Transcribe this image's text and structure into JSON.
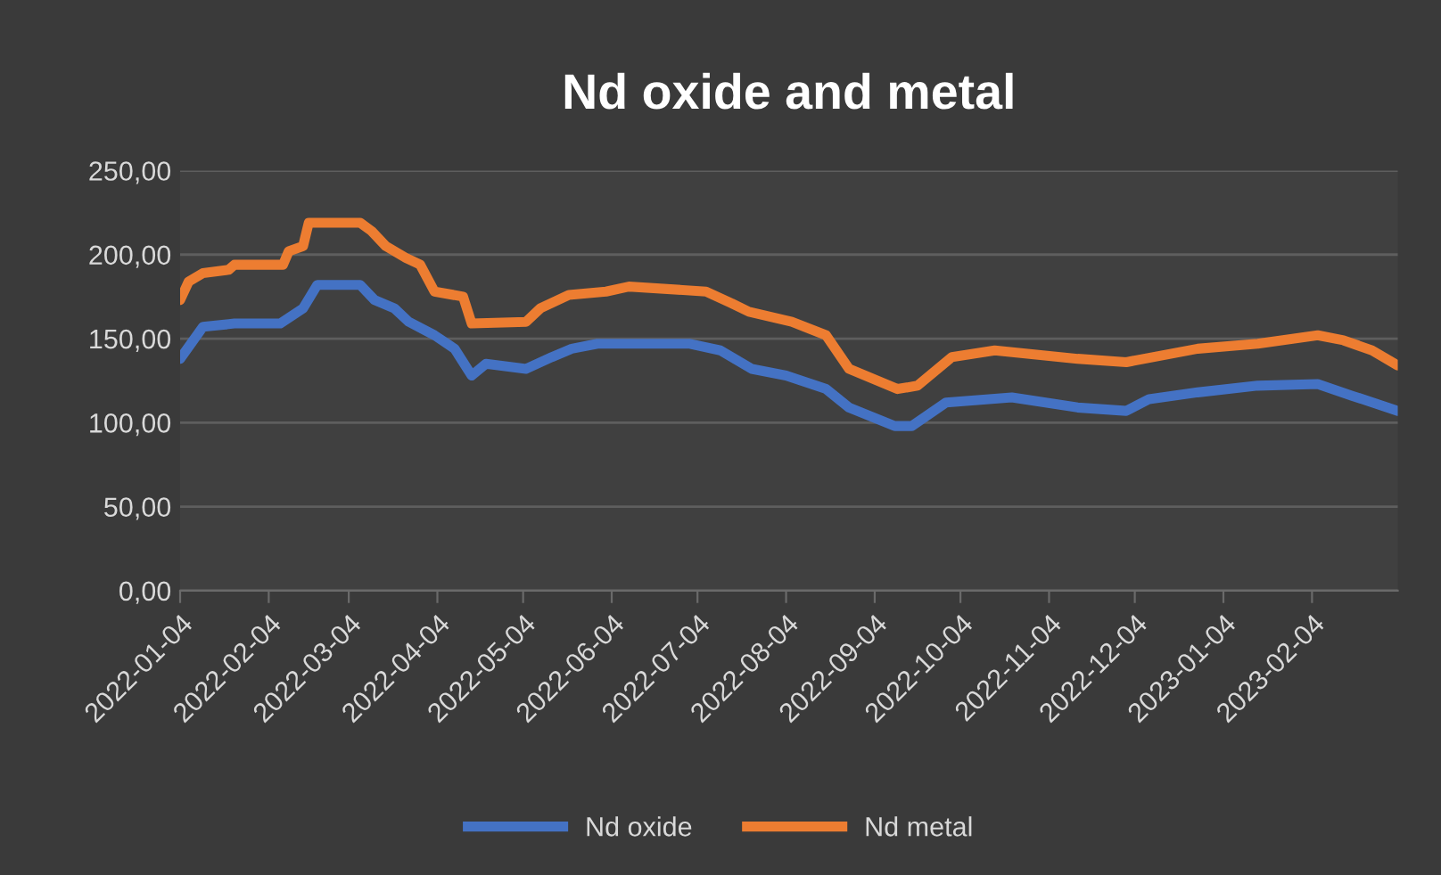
{
  "chart_data": {
    "type": "line",
    "title": "Nd oxide and metal",
    "ylim": [
      0,
      250
    ],
    "yticks": [
      {
        "value": 0,
        "label": "0,00"
      },
      {
        "value": 50,
        "label": "50,00"
      },
      {
        "value": 100,
        "label": "100,00"
      },
      {
        "value": 150,
        "label": "150,00"
      },
      {
        "value": 200,
        "label": "200,00"
      },
      {
        "value": 250,
        "label": "250,00"
      }
    ],
    "xlim": [
      "2022-01-04",
      "2023-03-06"
    ],
    "xticks": [
      "2022-01-04",
      "2022-02-04",
      "2022-03-04",
      "2022-04-04",
      "2022-05-04",
      "2022-06-04",
      "2022-07-04",
      "2022-08-04",
      "2022-09-04",
      "2022-10-04",
      "2022-11-04",
      "2022-12-04",
      "2023-01-04",
      "2023-02-04"
    ],
    "grid": "y",
    "legend": "bottom",
    "marker": "none",
    "line_style": "solid",
    "series": [
      {
        "name": "Nd oxide",
        "color": "#4472c4",
        "x": [
          "2022-01-04",
          "2022-01-12",
          "2022-01-23",
          "2022-02-08",
          "2022-02-16",
          "2022-02-21",
          "2022-03-08",
          "2022-03-13",
          "2022-03-20",
          "2022-03-25",
          "2022-04-03",
          "2022-04-10",
          "2022-04-16",
          "2022-04-21",
          "2022-05-05",
          "2022-05-14",
          "2022-05-21",
          "2022-05-30",
          "2022-07-01",
          "2022-07-12",
          "2022-07-23",
          "2022-08-04",
          "2022-08-18",
          "2022-08-26",
          "2022-09-11",
          "2022-09-17",
          "2022-09-29",
          "2022-10-22",
          "2022-11-14",
          "2022-12-01",
          "2022-12-09",
          "2022-12-26",
          "2023-01-16",
          "2023-02-06",
          "2023-02-18",
          "2023-03-06"
        ],
        "values": [
          138,
          157,
          159,
          159,
          168,
          182,
          182,
          173,
          168,
          160,
          152,
          144,
          128,
          135,
          132,
          139,
          144,
          147,
          147,
          143,
          132,
          128,
          120,
          109,
          98,
          98,
          112,
          115,
          109,
          107,
          114,
          118,
          122,
          123,
          116,
          107
        ]
      },
      {
        "name": "Nd metal",
        "color": "#ed7d31",
        "x": [
          "2022-01-04",
          "2022-01-07",
          "2022-01-12",
          "2022-01-21",
          "2022-01-23",
          "2022-02-09",
          "2022-02-11",
          "2022-02-16",
          "2022-02-18",
          "2022-03-08",
          "2022-03-12",
          "2022-03-17",
          "2022-03-24",
          "2022-03-29",
          "2022-04-03",
          "2022-04-13",
          "2022-04-16",
          "2022-05-05",
          "2022-05-10",
          "2022-05-20",
          "2022-06-02",
          "2022-06-10",
          "2022-07-07",
          "2022-07-16",
          "2022-07-22",
          "2022-08-06",
          "2022-08-18",
          "2022-08-26",
          "2022-09-12",
          "2022-09-19",
          "2022-10-01",
          "2022-10-16",
          "2022-11-14",
          "2022-12-01",
          "2022-12-26",
          "2023-01-16",
          "2023-02-06",
          "2023-02-15",
          "2023-02-25",
          "2023-03-06"
        ],
        "values": [
          173,
          184,
          189,
          191,
          194,
          194,
          202,
          205,
          219,
          219,
          214,
          205,
          198,
          194,
          178,
          175,
          159,
          160,
          168,
          176,
          178,
          181,
          178,
          171,
          166,
          160,
          152,
          132,
          120,
          122,
          139,
          143,
          138,
          136,
          144,
          147,
          152,
          149,
          143,
          134
        ]
      }
    ]
  }
}
